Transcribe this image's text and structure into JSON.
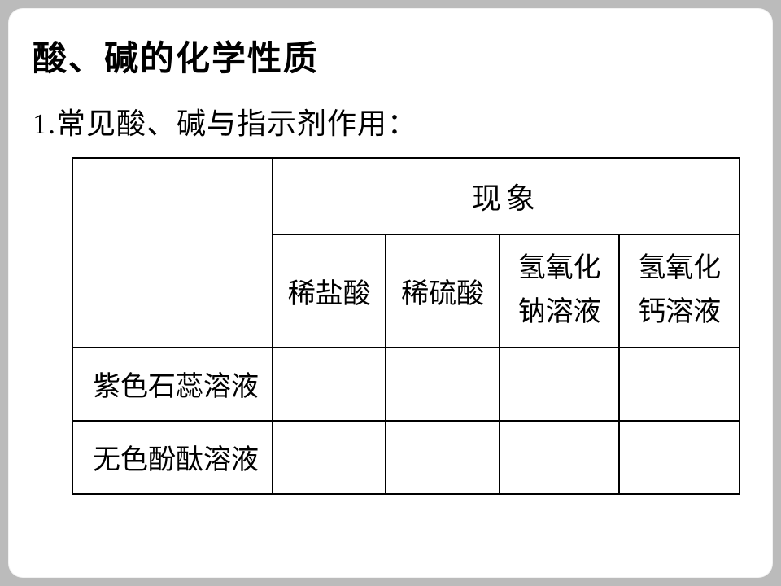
{
  "title": "酸、碱的化学性质",
  "subtitle_num": "1.",
  "subtitle_text": "常见酸、碱与指示剂作用：",
  "table": {
    "top_header": "现象",
    "col_headers": [
      "稀盐酸",
      "稀硫酸",
      "氢氧化\n钠溶液",
      "氢氧化\n钙溶液"
    ],
    "row_headers": [
      "紫色石蕊溶液",
      "无色酚酞溶液"
    ],
    "cells": [
      [
        "",
        "",
        "",
        ""
      ],
      [
        "",
        "",
        "",
        ""
      ]
    ],
    "border_color": "#000000",
    "background": "#ffffff",
    "font_size_header": 36,
    "font_size_body": 34
  },
  "colors": {
    "page_bg": "#bbbbbb",
    "card_bg": "#ffffff",
    "text": "#000000"
  }
}
